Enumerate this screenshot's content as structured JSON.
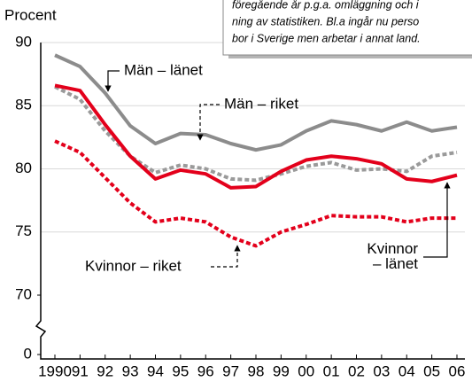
{
  "chart_data": {
    "type": "line",
    "y_axis_label": "Procent",
    "note": [
      "föregående år p.g.a. omläggning och i",
      "ning av statistiken. Bl.a ingår nu perso",
      "bor i Sverige men arbetar i annat land."
    ],
    "categories": [
      "1990",
      "91",
      "92",
      "93",
      "94",
      "95",
      "96",
      "97",
      "98",
      "99",
      "00",
      "01",
      "02",
      "03",
      "04",
      "05",
      "06"
    ],
    "ylim": [
      0,
      90
    ],
    "axis_break": [
      0,
      70
    ],
    "yticks": [
      0,
      70,
      75,
      80,
      85,
      90
    ],
    "grid": true,
    "series": [
      {
        "name": "Män – länet",
        "color": "#8c8c8c",
        "dash": false,
        "values": [
          89.0,
          88.1,
          86.0,
          83.4,
          82.0,
          82.8,
          82.7,
          82.0,
          81.5,
          81.9,
          83.0,
          83.8,
          83.5,
          83.0,
          83.7,
          83.0,
          83.3
        ]
      },
      {
        "name": "Män – riket",
        "color": "#9a9a9a",
        "dash": true,
        "values": [
          86.5,
          85.5,
          83.0,
          81.0,
          79.7,
          80.3,
          80.0,
          79.2,
          79.1,
          79.6,
          80.2,
          80.5,
          79.9,
          80.0,
          79.8,
          81.0,
          81.3
        ]
      },
      {
        "name": "Kvinnor – länet",
        "color": "#e3001b",
        "dash": false,
        "values": [
          86.6,
          86.2,
          83.5,
          81.0,
          79.2,
          79.9,
          79.6,
          78.5,
          78.6,
          79.8,
          80.7,
          81.0,
          80.8,
          80.4,
          79.2,
          79.0,
          79.5
        ]
      },
      {
        "name": "Kvinnor – riket",
        "color": "#e3001b",
        "dash": true,
        "values": [
          82.2,
          81.3,
          79.3,
          77.3,
          75.8,
          76.1,
          75.8,
          74.6,
          73.9,
          75.0,
          75.6,
          76.3,
          76.2,
          76.2,
          75.8,
          76.1,
          76.1
        ]
      }
    ]
  }
}
